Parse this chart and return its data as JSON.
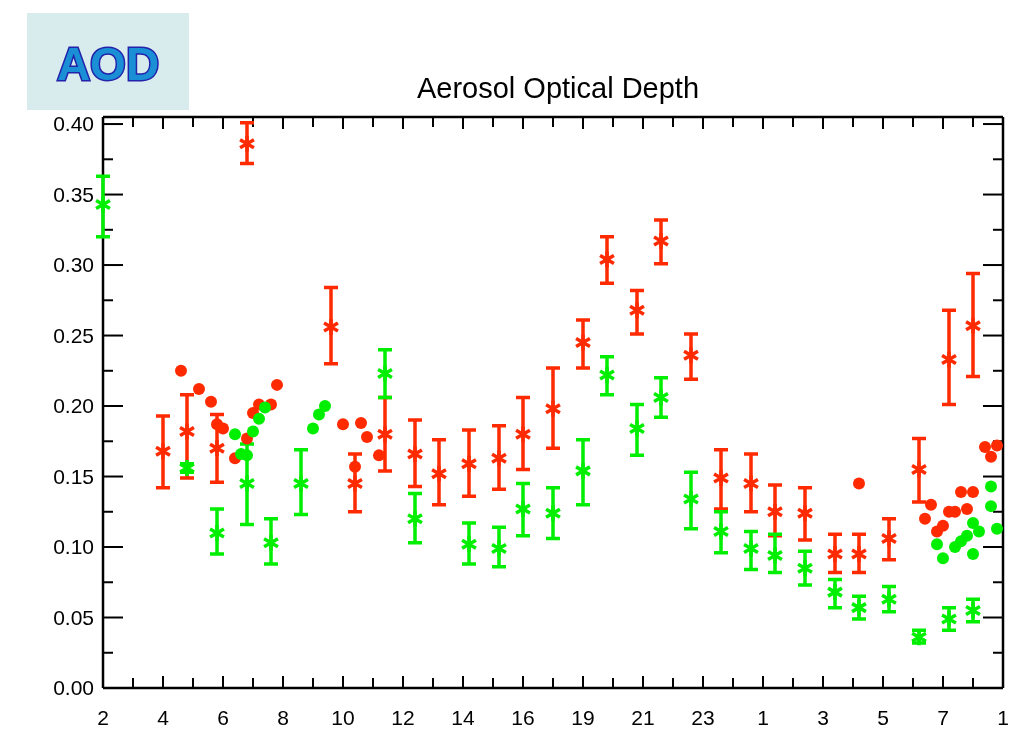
{
  "chart_data": {
    "type": "scatter",
    "title": "Aerosol Optical Depth",
    "annotations": [
      "AOD"
    ],
    "categories": [
      "2",
      null,
      null,
      null,
      null,
      null,
      null,
      null,
      null,
      null,
      "4",
      null,
      null,
      null,
      null,
      null,
      null,
      null,
      null,
      null,
      "6",
      null,
      null,
      null,
      null,
      null,
      null,
      null,
      null,
      null,
      "8",
      null,
      null,
      null,
      null,
      null,
      null,
      null,
      null,
      null,
      "10",
      null,
      null,
      null,
      null,
      null,
      null,
      null,
      null,
      null,
      "12",
      null,
      null,
      null,
      null,
      null,
      null,
      null,
      null,
      null,
      "14",
      null,
      null,
      null,
      null,
      null,
      null,
      null,
      null,
      null,
      "16",
      null,
      null,
      null,
      null,
      null,
      null,
      null,
      null,
      null,
      "19",
      null,
      null,
      null,
      null,
      null,
      null,
      null,
      null,
      null,
      "21",
      null,
      null,
      null,
      null,
      null,
      null,
      null,
      null,
      null,
      "23",
      null,
      null,
      null,
      null,
      null,
      null,
      null,
      null,
      null,
      "1",
      null,
      null,
      null,
      null,
      null,
      null,
      null,
      null,
      null,
      "3",
      null,
      null,
      null,
      null,
      null,
      null,
      null,
      null,
      null,
      "5",
      null,
      null,
      null,
      null,
      null,
      null,
      null,
      null,
      null,
      "7",
      null,
      null,
      null,
      null,
      null,
      null,
      null,
      null,
      null,
      "1"
    ],
    "ylim": [
      0,
      0.405
    ],
    "yticks": [
      {
        "value": 0,
        "label": "0.00"
      },
      {
        "value": 0.025,
        "label": null
      },
      {
        "value": 0.05,
        "label": "0.05"
      },
      {
        "value": 0.075,
        "label": null
      },
      {
        "value": 0.1,
        "label": "0.10"
      },
      {
        "value": 0.125,
        "label": null
      },
      {
        "value": 0.15,
        "label": "0.15"
      },
      {
        "value": 0.175,
        "label": null
      },
      {
        "value": 0.2,
        "label": "0.20"
      },
      {
        "value": 0.225,
        "label": null
      },
      {
        "value": 0.25,
        "label": "0.25"
      },
      {
        "value": 0.275,
        "label": null
      },
      {
        "value": 0.3,
        "label": "0.30"
      },
      {
        "value": 0.325,
        "label": null
      },
      {
        "value": 0.35,
        "label": "0.35"
      },
      {
        "value": 0.375,
        "label": null
      },
      {
        "value": 0.4,
        "label": "0.40"
      }
    ],
    "series": [
      {
        "color": "#ff2a00",
        "marker": "cross",
        "values": [
          null,
          null,
          null,
          null,
          null,
          null,
          null,
          null,
          null,
          null,
          0.168,
          null,
          null,
          null,
          0.182,
          null,
          null,
          null,
          null,
          0.17,
          null,
          null,
          null,
          null,
          0.386,
          null,
          null,
          null,
          null,
          null,
          null,
          null,
          null,
          null,
          null,
          null,
          null,
          null,
          0.256,
          null,
          null,
          null,
          0.145,
          null,
          null,
          null,
          null,
          0.18,
          null,
          null,
          null,
          null,
          0.166,
          null,
          null,
          null,
          0.152,
          null,
          null,
          null,
          null,
          0.159,
          null,
          null,
          null,
          null,
          0.163,
          null,
          null,
          null,
          0.18,
          null,
          null,
          null,
          null,
          0.198,
          null,
          null,
          null,
          null,
          0.245,
          null,
          null,
          null,
          0.304,
          null,
          null,
          null,
          null,
          0.268,
          null,
          null,
          null,
          0.317,
          null,
          null,
          null,
          null,
          0.236,
          null,
          null,
          null,
          null,
          0.149,
          null,
          null,
          null,
          null,
          0.145,
          null,
          null,
          null,
          0.125,
          null,
          null,
          null,
          null,
          0.124,
          null,
          null,
          null,
          null,
          0.095,
          null,
          null,
          null,
          0.095,
          null,
          null,
          null,
          null,
          0.106,
          null,
          null,
          null,
          null,
          0.155,
          null,
          null,
          null,
          null,
          0.233,
          null,
          null,
          null,
          0.257,
          null,
          null,
          null,
          null,
          null
        ],
        "errors": [
          null,
          null,
          null,
          null,
          null,
          null,
          null,
          null,
          null,
          null,
          [
            0.142,
            0.193
          ],
          null,
          null,
          null,
          [
            0.149,
            0.208
          ],
          null,
          null,
          null,
          null,
          [
            0.146,
            0.194
          ],
          null,
          null,
          null,
          null,
          [
            0.372,
            0.401
          ],
          null,
          null,
          null,
          null,
          null,
          null,
          null,
          null,
          null,
          null,
          null,
          null,
          null,
          [
            0.23,
            0.284
          ],
          null,
          null,
          null,
          [
            0.125,
            0.166
          ],
          null,
          null,
          null,
          null,
          [
            0.154,
            0.206
          ],
          null,
          null,
          null,
          null,
          [
            0.143,
            0.19
          ],
          null,
          null,
          null,
          [
            0.13,
            0.176
          ],
          null,
          null,
          null,
          null,
          [
            0.136,
            0.183
          ],
          null,
          null,
          null,
          null,
          [
            0.141,
            0.186
          ],
          null,
          null,
          null,
          [
            0.155,
            0.206
          ],
          null,
          null,
          null,
          null,
          [
            0.17,
            0.227
          ],
          null,
          null,
          null,
          null,
          [
            0.227,
            0.261
          ],
          null,
          null,
          null,
          [
            0.287,
            0.32
          ],
          null,
          null,
          null,
          null,
          [
            0.251,
            0.282
          ],
          null,
          null,
          null,
          [
            0.301,
            0.332
          ],
          null,
          null,
          null,
          null,
          [
            0.219,
            0.251
          ],
          null,
          null,
          null,
          null,
          [
            0.127,
            0.169
          ],
          null,
          null,
          null,
          null,
          [
            0.125,
            0.166
          ],
          null,
          null,
          null,
          [
            0.108,
            0.144
          ],
          null,
          null,
          null,
          null,
          [
            0.105,
            0.142
          ],
          null,
          null,
          null,
          null,
          [
            0.082,
            0.109
          ],
          null,
          null,
          null,
          [
            0.082,
            0.109
          ],
          null,
          null,
          null,
          null,
          [
            0.091,
            0.12
          ],
          null,
          null,
          null,
          null,
          [
            0.132,
            0.177
          ],
          null,
          null,
          null,
          null,
          [
            0.201,
            0.268
          ],
          null,
          null,
          null,
          [
            0.221,
            0.294
          ],
          null,
          null,
          null,
          null,
          null
        ]
      },
      {
        "color": "#00ee00",
        "marker": "cross",
        "values": [
          0.343,
          null,
          null,
          null,
          null,
          null,
          null,
          null,
          null,
          null,
          null,
          null,
          null,
          null,
          0.156,
          null,
          null,
          null,
          null,
          0.11,
          null,
          null,
          null,
          null,
          0.145,
          null,
          null,
          null,
          0.103,
          null,
          null,
          null,
          null,
          0.145,
          null,
          null,
          null,
          null,
          null,
          null,
          null,
          null,
          null,
          null,
          null,
          null,
          null,
          0.223,
          null,
          null,
          null,
          null,
          0.12,
          null,
          null,
          null,
          null,
          null,
          null,
          null,
          null,
          0.102,
          null,
          null,
          null,
          null,
          0.099,
          null,
          null,
          null,
          0.127,
          null,
          null,
          null,
          null,
          0.124,
          null,
          null,
          null,
          null,
          0.154,
          null,
          null,
          null,
          0.222,
          null,
          null,
          null,
          null,
          0.184,
          null,
          null,
          null,
          0.206,
          null,
          null,
          null,
          null,
          0.134,
          null,
          null,
          null,
          null,
          0.111,
          null,
          null,
          null,
          null,
          0.099,
          null,
          null,
          null,
          0.094,
          null,
          null,
          null,
          null,
          0.085,
          null,
          null,
          null,
          null,
          0.068,
          null,
          null,
          null,
          0.057,
          null,
          null,
          null,
          null,
          0.063,
          null,
          null,
          null,
          null,
          0.036,
          null,
          null,
          null,
          null,
          0.049,
          null,
          null,
          null,
          0.055,
          null,
          null,
          null,
          null,
          null
        ],
        "errors": [
          [
            0.32,
            0.363
          ],
          null,
          null,
          null,
          null,
          null,
          null,
          null,
          null,
          null,
          null,
          null,
          null,
          null,
          [
            0.153,
            0.159
          ],
          null,
          null,
          null,
          null,
          [
            0.095,
            0.127
          ],
          null,
          null,
          null,
          null,
          [
            0.116,
            0.173
          ],
          null,
          null,
          null,
          [
            0.088,
            0.12
          ],
          null,
          null,
          null,
          null,
          [
            0.123,
            0.169
          ],
          null,
          null,
          null,
          null,
          null,
          null,
          null,
          null,
          null,
          null,
          null,
          null,
          null,
          [
            0.206,
            0.24
          ],
          null,
          null,
          null,
          null,
          [
            0.103,
            0.138
          ],
          null,
          null,
          null,
          null,
          null,
          null,
          null,
          null,
          [
            0.088,
            0.117
          ],
          null,
          null,
          null,
          null,
          [
            0.086,
            0.114
          ],
          null,
          null,
          null,
          [
            0.108,
            0.145
          ],
          null,
          null,
          null,
          null,
          [
            0.106,
            0.142
          ],
          null,
          null,
          null,
          null,
          [
            0.13,
            0.176
          ],
          null,
          null,
          null,
          [
            0.208,
            0.235
          ],
          null,
          null,
          null,
          null,
          [
            0.165,
            0.201
          ],
          null,
          null,
          null,
          [
            0.192,
            0.22
          ],
          null,
          null,
          null,
          null,
          [
            0.113,
            0.153
          ],
          null,
          null,
          null,
          null,
          [
            0.096,
            0.125
          ],
          null,
          null,
          null,
          null,
          [
            0.084,
            0.111
          ],
          null,
          null,
          null,
          [
            0.082,
            0.109
          ],
          null,
          null,
          null,
          null,
          [
            0.073,
            0.097
          ],
          null,
          null,
          null,
          null,
          [
            0.057,
            0.077
          ],
          null,
          null,
          null,
          [
            0.049,
            0.065
          ],
          null,
          null,
          null,
          null,
          [
            0.054,
            0.072
          ],
          null,
          null,
          null,
          null,
          [
            0.032,
            0.041
          ],
          null,
          null,
          null,
          null,
          [
            0.041,
            0.057
          ],
          null,
          null,
          null,
          [
            0.047,
            0.063
          ],
          null,
          null,
          null,
          null,
          null
        ]
      },
      {
        "color": "#ff2a00",
        "marker": "circle",
        "values": [
          null,
          null,
          null,
          null,
          null,
          null,
          null,
          null,
          null,
          null,
          null,
          null,
          null,
          0.225,
          null,
          null,
          0.212,
          null,
          0.203,
          0.187,
          0.184,
          null,
          0.163,
          null,
          0.177,
          0.195,
          0.201,
          null,
          0.201,
          0.215,
          null,
          null,
          null,
          null,
          null,
          null,
          null,
          null,
          null,
          null,
          0.187,
          null,
          0.157,
          0.188,
          0.178,
          null,
          0.165,
          null,
          null,
          null,
          null,
          null,
          null,
          null,
          null,
          null,
          null,
          null,
          null,
          null,
          null,
          null,
          null,
          null,
          null,
          null,
          null,
          null,
          null,
          null,
          null,
          null,
          null,
          null,
          null,
          null,
          null,
          null,
          null,
          null,
          null,
          null,
          null,
          null,
          null,
          null,
          null,
          null,
          null,
          null,
          null,
          null,
          null,
          null,
          null,
          null,
          null,
          null,
          null,
          null,
          null,
          null,
          null,
          null,
          null,
          null,
          null,
          null,
          null,
          null,
          null,
          null,
          null,
          null,
          null,
          null,
          null,
          null,
          null,
          null,
          null,
          null,
          null,
          null,
          null,
          null,
          0.145,
          null,
          null,
          null,
          null,
          null,
          null,
          null,
          null,
          null,
          null,
          0.12,
          0.13,
          0.111,
          0.115,
          0.125,
          0.125,
          0.139,
          0.127,
          0.139,
          null,
          0.171,
          0.164,
          0.172,
          null
        ]
      },
      {
        "color": "#00ee00",
        "marker": "circle",
        "values": [
          null,
          null,
          null,
          null,
          null,
          null,
          null,
          null,
          null,
          null,
          null,
          null,
          null,
          null,
          null,
          null,
          null,
          null,
          null,
          null,
          null,
          null,
          0.18,
          0.166,
          0.165,
          0.182,
          0.191,
          0.199,
          null,
          null,
          null,
          null,
          null,
          null,
          null,
          0.184,
          0.194,
          0.2,
          null,
          null,
          null,
          null,
          null,
          null,
          null,
          null,
          null,
          null,
          null,
          null,
          null,
          null,
          null,
          null,
          null,
          null,
          null,
          null,
          null,
          null,
          null,
          null,
          null,
          null,
          null,
          null,
          null,
          null,
          null,
          null,
          null,
          null,
          null,
          null,
          null,
          null,
          null,
          null,
          null,
          null,
          null,
          null,
          null,
          null,
          null,
          null,
          null,
          null,
          null,
          null,
          null,
          null,
          null,
          null,
          null,
          null,
          null,
          null,
          null,
          null,
          null,
          null,
          null,
          null,
          null,
          null,
          null,
          null,
          null,
          null,
          null,
          null,
          null,
          null,
          null,
          null,
          null,
          null,
          null,
          null,
          null,
          null,
          null,
          null,
          null,
          null,
          null,
          null,
          null,
          null,
          null,
          null,
          null,
          null,
          null,
          null,
          null,
          null,
          null,
          0.102,
          0.092,
          null,
          0.1,
          0.104,
          0.108,
          0.117,
          0.111,
          null,
          0.129,
          null,
          null
        ]
      },
      {
        "color": "#00ee00",
        "marker": "circle",
        "values": [
          null,
          null,
          null,
          null,
          null,
          null,
          null,
          null,
          null,
          null,
          null,
          null,
          null,
          null,
          null,
          null,
          null,
          null,
          null,
          null,
          null,
          null,
          null,
          null,
          null,
          null,
          null,
          null,
          null,
          null,
          null,
          null,
          null,
          null,
          null,
          null,
          null,
          null,
          null,
          null,
          null,
          null,
          null,
          null,
          null,
          null,
          null,
          null,
          null,
          null,
          null,
          null,
          null,
          null,
          null,
          null,
          null,
          null,
          null,
          null,
          null,
          null,
          null,
          null,
          null,
          null,
          null,
          null,
          null,
          null,
          null,
          null,
          null,
          null,
          null,
          null,
          null,
          null,
          null,
          null,
          null,
          null,
          null,
          null,
          null,
          null,
          null,
          null,
          null,
          null,
          null,
          null,
          null,
          null,
          null,
          null,
          null,
          null,
          null,
          null,
          null,
          null,
          null,
          null,
          null,
          null,
          null,
          null,
          null,
          null,
          null,
          null,
          null,
          null,
          null,
          null,
          null,
          null,
          null,
          null,
          null,
          null,
          null,
          null,
          null,
          null,
          null,
          null,
          null,
          null,
          null,
          null,
          null,
          null,
          null,
          null,
          null,
          null,
          null,
          null,
          null,
          null,
          null,
          null,
          null,
          0.095,
          null,
          null,
          0.143,
          0.113,
          null
        ]
      }
    ]
  }
}
